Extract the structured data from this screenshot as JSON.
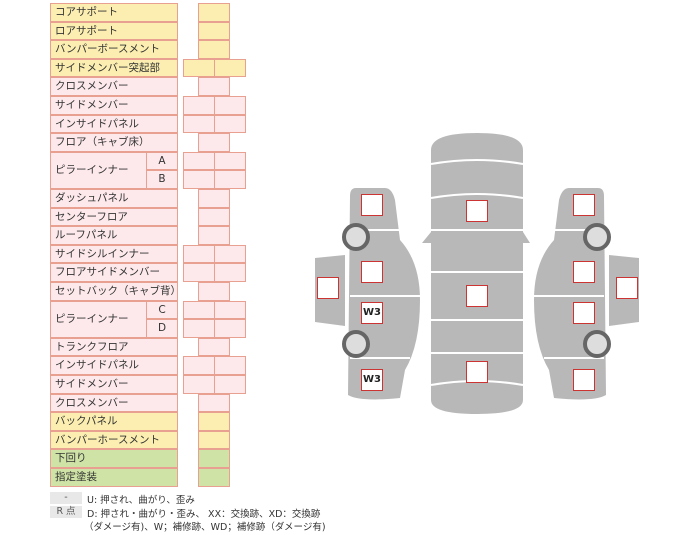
{
  "parts": [
    {
      "label": "コアサポート",
      "color": "yellow",
      "cells": 1
    },
    {
      "label": "ロアサポート",
      "color": "yellow",
      "cells": 1
    },
    {
      "label": "バンパーボースメント",
      "color": "yellow",
      "cells": 1
    },
    {
      "label": "サイドメンバー突起部",
      "color": "yellow",
      "cells": 2
    },
    {
      "label": "クロスメンバー",
      "color": "pink",
      "cells": 1
    },
    {
      "label": "サイドメンバー",
      "color": "pink",
      "cells": 2
    },
    {
      "label": "インサイドパネル",
      "color": "pink",
      "cells": 2
    },
    {
      "label": "フロア（キャブ床）",
      "color": "pink",
      "cells": 1
    },
    {
      "label": "ピラーインナー",
      "sub": "A",
      "color": "pink",
      "cells": 2
    },
    {
      "label": "",
      "sub": "B",
      "color": "pink",
      "cells": 2
    },
    {
      "label": "ダッシュパネル",
      "color": "pink",
      "cells": 1
    },
    {
      "label": "センターフロア",
      "color": "pink",
      "cells": 1
    },
    {
      "label": "ルーフパネル",
      "color": "pink",
      "cells": 1
    },
    {
      "label": "サイドシルインナー",
      "color": "pink",
      "cells": 2
    },
    {
      "label": "フロアサイドメンバー",
      "color": "pink",
      "cells": 2
    },
    {
      "label": "セットバック（キャブ背）",
      "color": "pink",
      "cells": 1
    },
    {
      "label": "ピラーインナー",
      "sub": "C",
      "color": "pink",
      "cells": 2
    },
    {
      "label": "",
      "sub": "D",
      "color": "pink",
      "cells": 2
    },
    {
      "label": "トランクフロア",
      "color": "pink",
      "cells": 1
    },
    {
      "label": "インサイドパネル",
      "color": "pink",
      "cells": 2
    },
    {
      "label": "サイドメンバー",
      "color": "pink",
      "cells": 2
    },
    {
      "label": "クロスメンバー",
      "color": "pink",
      "cells": 1
    },
    {
      "label": "バックパネル",
      "color": "yellow",
      "cells": 1
    },
    {
      "label": "バンパーホースメント",
      "color": "yellow",
      "cells": 1
    },
    {
      "label": "下回り",
      "color": "green",
      "cells": 1
    },
    {
      "label": "指定塗装",
      "color": "green",
      "cells": 1
    }
  ],
  "colors": {
    "yellow": "#fbeeb0",
    "pink": "#fde9ec",
    "green": "#cfe3a6",
    "border": "#e8a090",
    "car": "#b8b8b8",
    "mark": "#cc3333"
  },
  "legend": [
    {
      "key": "-",
      "text": "U: 押され、曲がり、歪み"
    },
    {
      "key": "R 点",
      "text": "D: 押され・曲がり・歪み、 XX：交換跡、XD：交換跡"
    },
    {
      "key": "",
      "text": "（ダメージ有)、W；補修跡、WD；補修跡（ダメージ有)"
    }
  ],
  "diagram": {
    "marks": [
      "",
      "",
      "W3",
      "W3",
      "",
      "",
      "",
      "",
      "",
      "",
      "",
      "",
      ""
    ]
  }
}
